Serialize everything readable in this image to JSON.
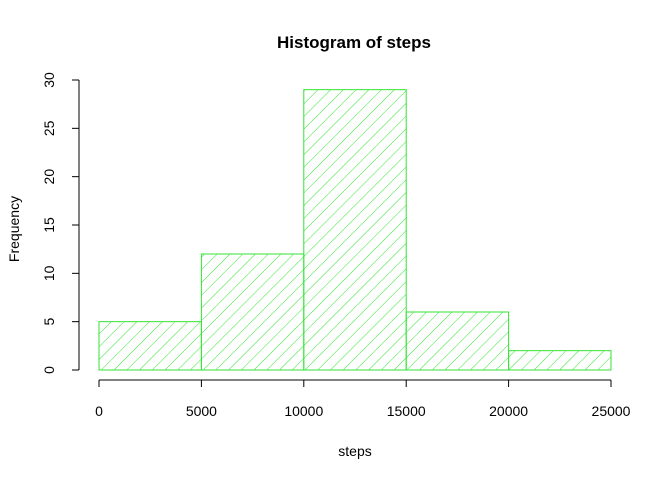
{
  "chart_data": {
    "type": "bar",
    "subtype": "histogram",
    "title": "Histogram of steps",
    "xlabel": "steps",
    "ylabel": "Frequency",
    "bins": [
      {
        "from": 0,
        "to": 5000,
        "count": 5
      },
      {
        "from": 5000,
        "to": 10000,
        "count": 12
      },
      {
        "from": 10000,
        "to": 15000,
        "count": 29
      },
      {
        "from": 15000,
        "to": 20000,
        "count": 6
      },
      {
        "from": 20000,
        "to": 25000,
        "count": 2
      }
    ],
    "xlim": [
      0,
      25000
    ],
    "ylim": [
      0,
      30
    ],
    "x_ticks": [
      "0",
      "5000",
      "10000",
      "15000",
      "20000",
      "25000"
    ],
    "y_ticks": [
      "0",
      "5",
      "10",
      "15",
      "20",
      "25",
      "30"
    ],
    "bar_color": "#33e533",
    "fill_pattern": "diagonal-hatch",
    "grid": false
  }
}
